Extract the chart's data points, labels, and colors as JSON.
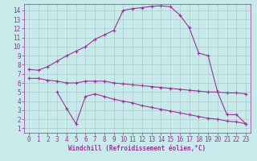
{
  "xlabel": "Windchill (Refroidissement éolien,°C)",
  "bg_color": "#c8eaea",
  "grid_color": "#aacccc",
  "line_color": "#993399",
  "xlim": [
    -0.5,
    23.5
  ],
  "ylim": [
    0.5,
    14.7
  ],
  "yticks": [
    1,
    2,
    3,
    4,
    5,
    6,
    7,
    8,
    9,
    10,
    11,
    12,
    13,
    14
  ],
  "xticks": [
    0,
    1,
    2,
    3,
    4,
    5,
    6,
    7,
    8,
    9,
    10,
    11,
    12,
    13,
    14,
    15,
    16,
    17,
    18,
    19,
    20,
    21,
    22,
    23
  ],
  "curve1_x": [
    0,
    1,
    2,
    3,
    4,
    5,
    6,
    7,
    8,
    9,
    10,
    11,
    12,
    13,
    14,
    15,
    16,
    17,
    18,
    19,
    20,
    21,
    22,
    23
  ],
  "curve1_y": [
    7.5,
    7.4,
    7.8,
    8.4,
    9.0,
    9.5,
    10.0,
    10.8,
    11.3,
    11.8,
    14.0,
    14.2,
    14.3,
    14.45,
    14.5,
    14.4,
    13.5,
    12.1,
    9.3,
    9.0,
    5.0,
    2.5,
    2.5,
    1.5
  ],
  "curve2_x": [
    0,
    1,
    2,
    3,
    4,
    5,
    6,
    7,
    8,
    9,
    10,
    11,
    12,
    13,
    14,
    15,
    16,
    17,
    18,
    19,
    20,
    21,
    22,
    23
  ],
  "curve2_y": [
    6.5,
    6.5,
    6.3,
    6.2,
    6.0,
    6.0,
    6.2,
    6.2,
    6.2,
    6.0,
    5.9,
    5.8,
    5.7,
    5.6,
    5.5,
    5.4,
    5.3,
    5.2,
    5.1,
    5.0,
    5.0,
    4.9,
    4.9,
    4.8
  ],
  "curve3_x": [
    3,
    4,
    5,
    6,
    7,
    8,
    9,
    10,
    11,
    12,
    13,
    14,
    15,
    16,
    17,
    18,
    19,
    20,
    21,
    22,
    23
  ],
  "curve3_y": [
    5.0,
    3.2,
    1.5,
    4.5,
    4.8,
    4.5,
    4.2,
    4.0,
    3.8,
    3.5,
    3.3,
    3.1,
    2.9,
    2.7,
    2.5,
    2.3,
    2.1,
    2.0,
    1.8,
    1.7,
    1.5
  ]
}
